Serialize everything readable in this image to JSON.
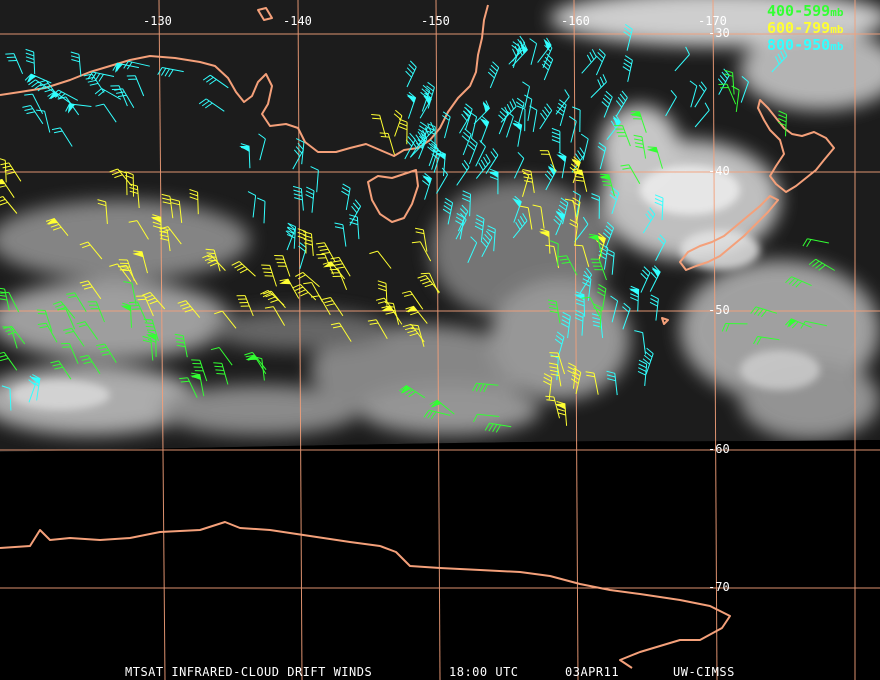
{
  "colors": {
    "background": "#000000",
    "grid": "#f4a07a",
    "coast": "#f4a07a",
    "label": "#ffffff",
    "layer_400_599": "#33ff33",
    "layer_600_799": "#ffff33",
    "layer_800_950": "#33ffff"
  },
  "map": {
    "longitude_labels": [
      "-130",
      "-140",
      "-150",
      "-160",
      "-170"
    ],
    "latitude_labels": [
      "-30",
      "-40",
      "-50",
      "-60",
      "-70"
    ]
  },
  "legend": [
    {
      "range": "400-599",
      "unit": "mb",
      "color": "#33ff33"
    },
    {
      "range": "600-799",
      "unit": "mb",
      "color": "#ffff33"
    },
    {
      "range": "800-950",
      "unit": "mb",
      "color": "#33ffff"
    }
  ],
  "caption": {
    "product": "MTSAT INFRARED-CLOUD DRIFT WINDS",
    "time": "18:00 UTC",
    "date": "03APR11",
    "source": "UW-CIMSS"
  }
}
